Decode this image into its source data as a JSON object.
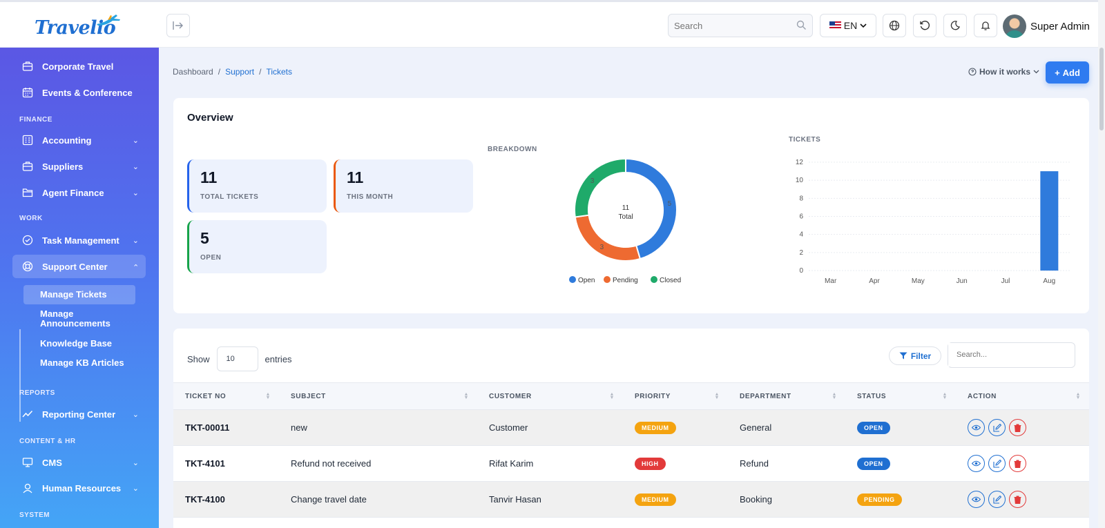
{
  "header": {
    "logo_text": "Travelio",
    "search_placeholder": "Search",
    "language": "EN",
    "user_name": "Super Admin"
  },
  "sidebar": {
    "items": [
      {
        "label": "Corporate Travel",
        "icon": "briefcase-icon"
      },
      {
        "label": "Events & Conference",
        "icon": "calendar-icon"
      },
      {
        "label": "Accounting",
        "icon": "ledger-icon"
      },
      {
        "label": "Suppliers",
        "icon": "briefcase-icon"
      },
      {
        "label": "Agent Finance",
        "icon": "folder-icon"
      },
      {
        "label": "Task Management",
        "icon": "check-circle-icon"
      },
      {
        "label": "Support Center",
        "icon": "lifebuoy-icon"
      },
      {
        "label": "Reporting Center",
        "icon": "trend-icon"
      },
      {
        "label": "CMS",
        "icon": "monitor-icon"
      },
      {
        "label": "Human Resources",
        "icon": "user-icon"
      }
    ],
    "sections": [
      "FINANCE",
      "WORK",
      "REPORTS",
      "CONTENT & HR",
      "SYSTEM"
    ],
    "support_sub": [
      "Manage Tickets",
      "Manage Announcements",
      "Knowledge Base",
      "Manage KB Articles"
    ]
  },
  "breadcrumb": [
    "Dashboard",
    "Support",
    "Tickets"
  ],
  "actions": {
    "how": "How it works",
    "add": "Add"
  },
  "overview": {
    "title": "Overview",
    "stats": [
      {
        "value": "11",
        "label": "TOTAL TICKETS",
        "color": "#2563eb"
      },
      {
        "value": "11",
        "label": "THIS MONTH",
        "color": "#ea580c"
      },
      {
        "value": "5",
        "label": "OPEN",
        "color": "#16a34a"
      }
    ],
    "breakdown_caption": "BREAKDOWN",
    "tickets_caption": "TICKETS"
  },
  "chart_data": [
    {
      "type": "pie",
      "title": "BREAKDOWN",
      "center_value": "11",
      "center_label": "Total",
      "categories": [
        "Open",
        "Pending",
        "Closed"
      ],
      "values": [
        5,
        3,
        3
      ],
      "colors": [
        "#2f7bdc",
        "#ee6a31",
        "#1faa6a"
      ],
      "legend": "bottom"
    },
    {
      "type": "bar",
      "title": "TICKETS",
      "categories": [
        "Mar",
        "Apr",
        "May",
        "Jun",
        "Jul",
        "Aug"
      ],
      "values": [
        0,
        0,
        0,
        0,
        0,
        11
      ],
      "ylim": [
        0,
        12
      ],
      "yticks": [
        0,
        2,
        4,
        6,
        8,
        10,
        12
      ],
      "color": "#2f7bdc",
      "grid": true
    }
  ],
  "table": {
    "show_label": "Show",
    "entries_label": "entries",
    "page_size": "10",
    "filter_label": "Filter",
    "search_placeholder": "Search...",
    "columns": [
      "TICKET NO",
      "SUBJECT",
      "CUSTOMER",
      "PRIORITY",
      "DEPARTMENT",
      "STATUS",
      "ACTION"
    ],
    "rows": [
      {
        "ticket": "TKT-00011",
        "subject": "new",
        "customer": "Customer",
        "priority": "MEDIUM",
        "department": "General",
        "status": "OPEN"
      },
      {
        "ticket": "TKT-4101",
        "subject": "Refund not received",
        "customer": "Rifat Karim",
        "priority": "HIGH",
        "department": "Refund",
        "status": "OPEN"
      },
      {
        "ticket": "TKT-4100",
        "subject": "Change travel date",
        "customer": "Tanvir Hasan",
        "priority": "MEDIUM",
        "department": "Booking",
        "status": "PENDING"
      }
    ]
  }
}
